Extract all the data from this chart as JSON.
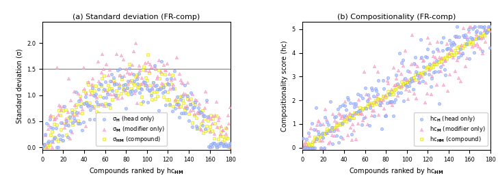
{
  "title_left": "(a) Standard deviation (FR-comp)",
  "title_right": "(b) Compositionality (FR-comp)",
  "xlabel": "Compounds ranked by hc$_\\mathbf{HM}$",
  "ylabel_left": "Standard deviation (σ)",
  "ylabel_right": "Compositionality score (hc)",
  "n_compounds": 180,
  "hline_y": 1.5,
  "color_H": "#aabbff",
  "color_M": "#ffaacc",
  "color_HM": "#ffff55",
  "edge_H": "#7799ee",
  "edge_M": "#ee88bb",
  "edge_HM": "#cccc00",
  "marker_H": "o",
  "marker_M": "^",
  "marker_HM": "s",
  "markersize": 10,
  "lw_edge": 0.4,
  "alpha": 0.75,
  "seed": 42,
  "xlim": [
    0,
    180
  ],
  "ylim_left": [
    -0.05,
    2.4
  ],
  "ylim_right": [
    -0.1,
    5.3
  ],
  "xticks": [
    0,
    20,
    40,
    60,
    80,
    100,
    120,
    140,
    160,
    180
  ],
  "yticks_left": [
    0.0,
    0.5,
    1.0,
    1.5,
    2.0
  ],
  "yticks_right": [
    0,
    1,
    2,
    3,
    4,
    5
  ],
  "legend_labels_left": [
    "σ$_\\mathbf{H}$ (head only)",
    "σ$_\\mathbf{M}$ (modifier only)",
    "σ$_\\mathbf{HM}$ (compound)"
  ],
  "legend_labels_right": [
    "hc$_\\mathbf{H}$ (head only)",
    "hc$_\\mathbf{M}$ (modifier only)",
    "hc$_\\mathbf{HM}$ (compound)"
  ]
}
